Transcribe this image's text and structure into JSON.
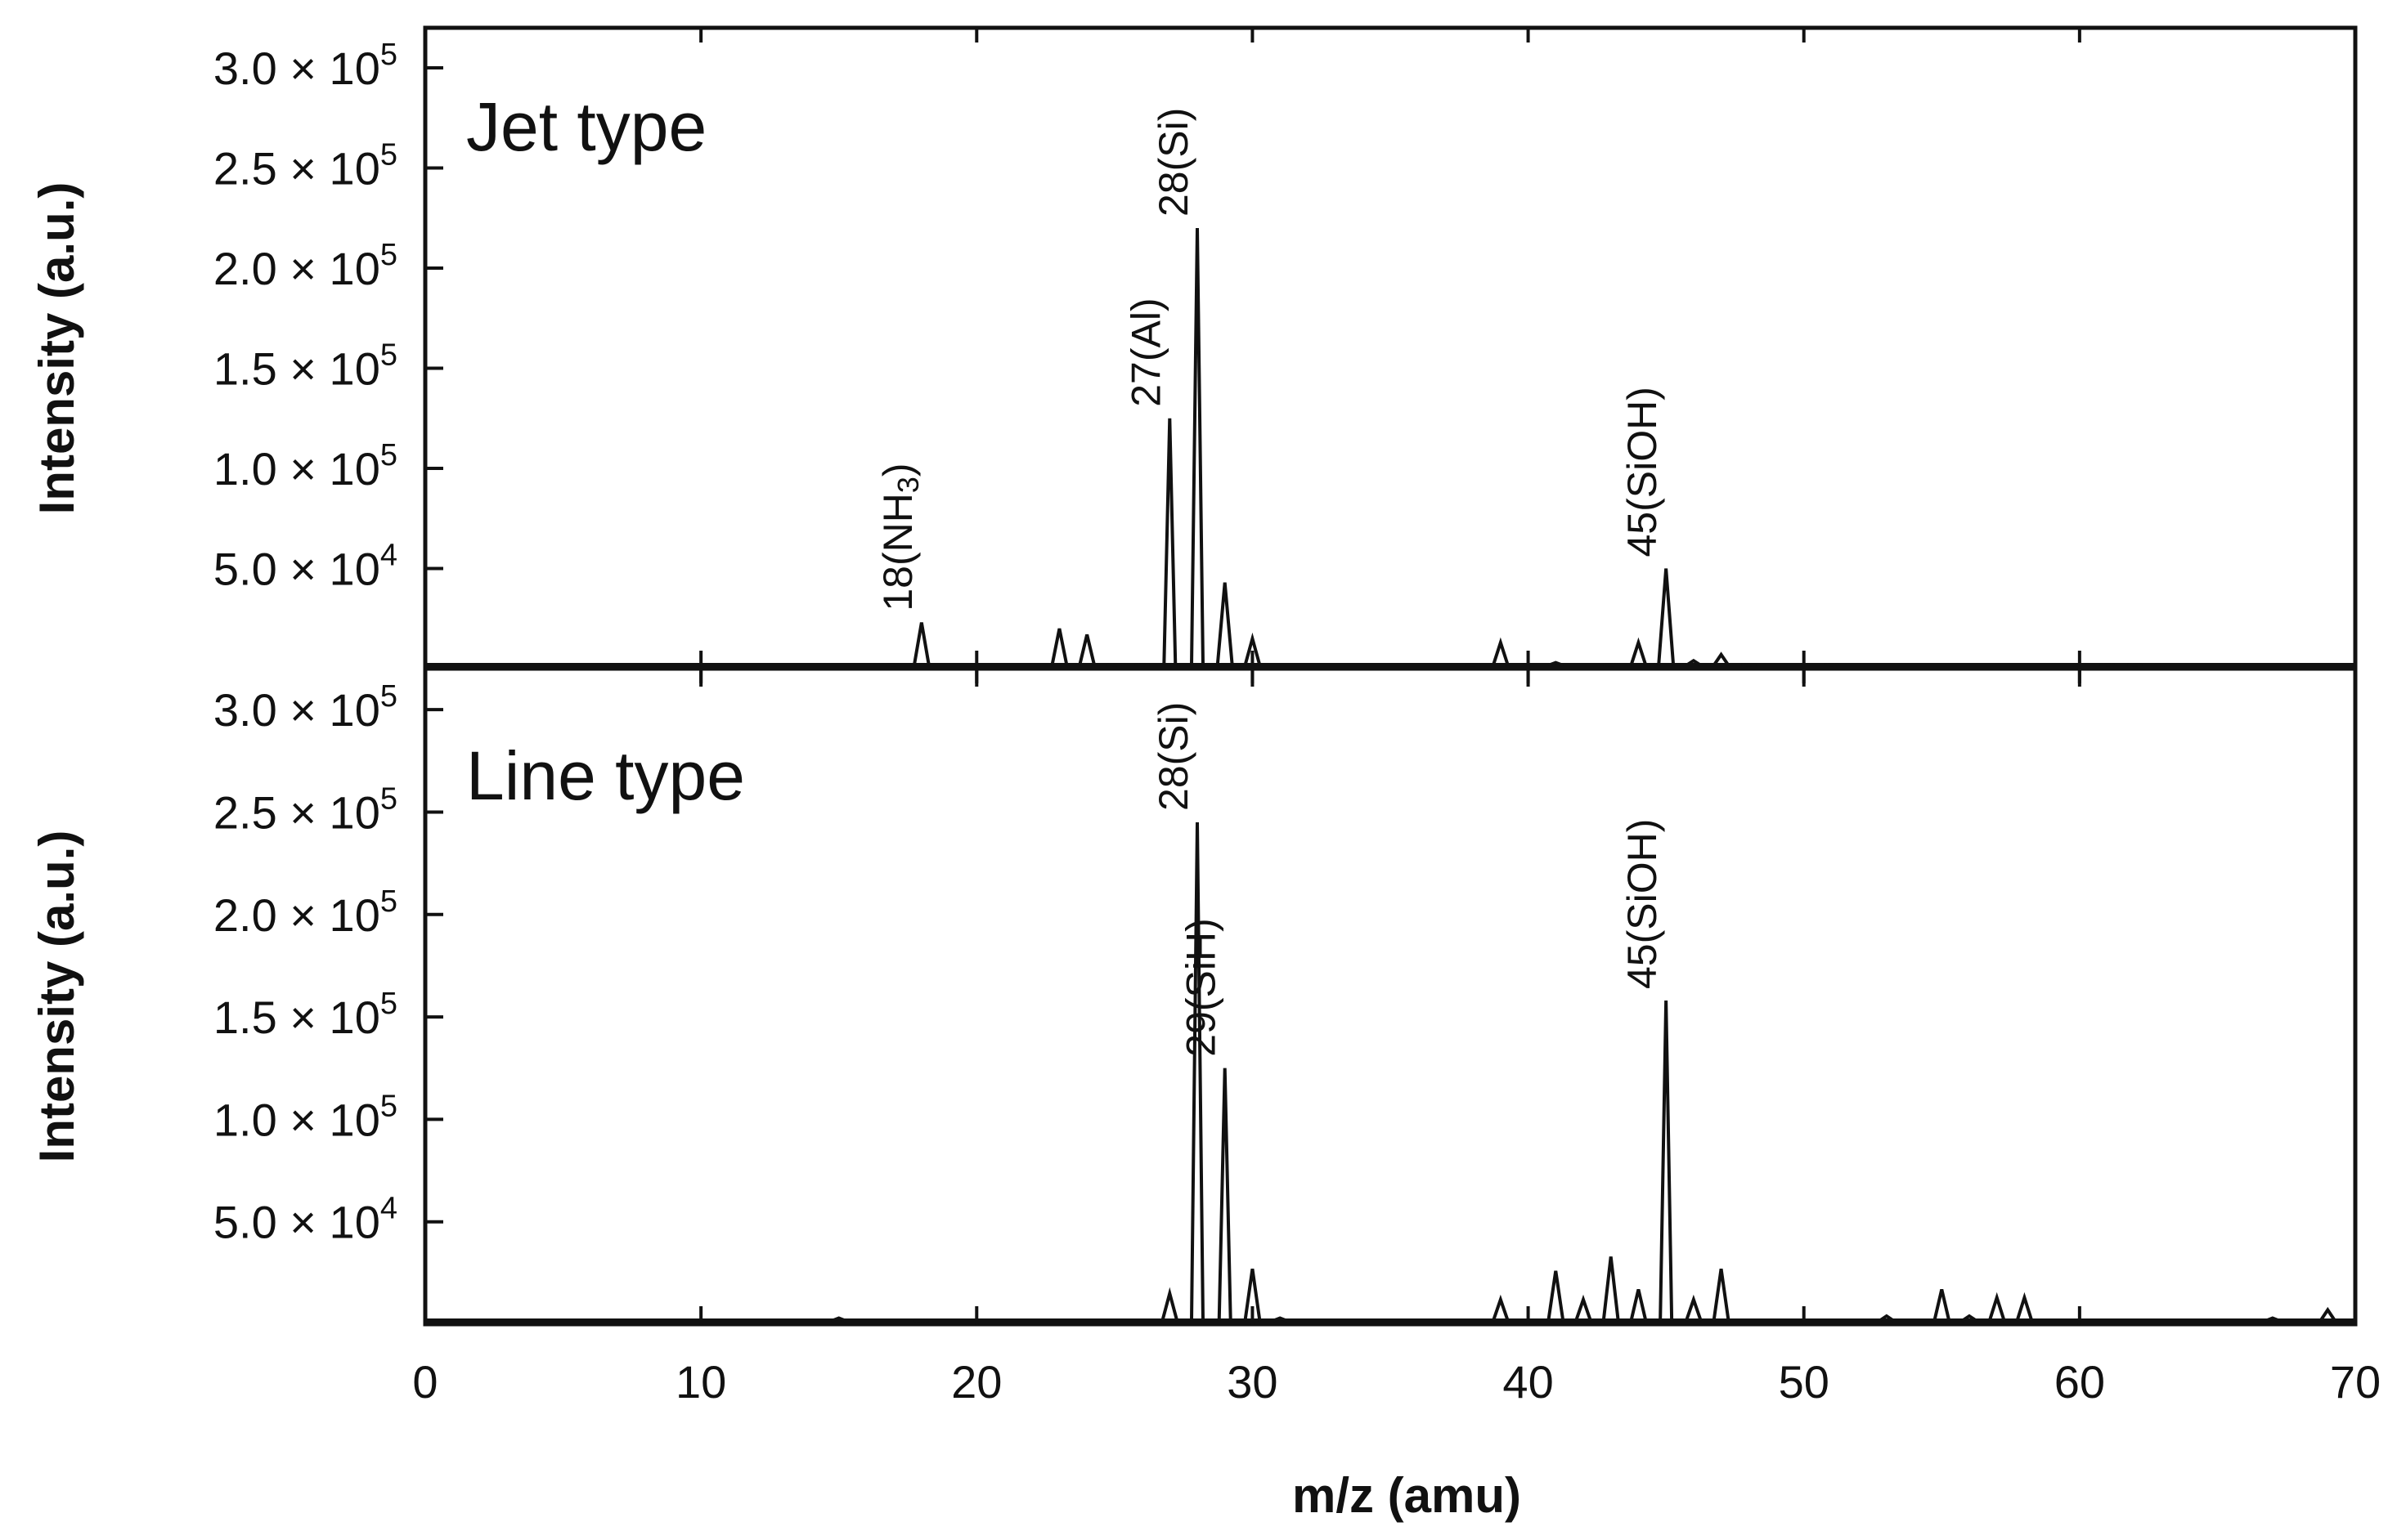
{
  "chart_data": [
    {
      "type": "line",
      "title": "Jet type",
      "xlabel": "m/z (amu)",
      "ylabel": "Intensity (a.u.)",
      "xlim": [
        0,
        70
      ],
      "ylim": [
        0,
        320000
      ],
      "xticks": [
        0,
        10,
        20,
        30,
        40,
        50,
        60,
        70
      ],
      "yticks": [
        {
          "value": 50000,
          "mantissa": "5.0",
          "exponent": "4"
        },
        {
          "value": 100000,
          "mantissa": "1.0",
          "exponent": "5"
        },
        {
          "value": 150000,
          "mantissa": "1.5",
          "exponent": "5"
        },
        {
          "value": 200000,
          "mantissa": "2.0",
          "exponent": "5"
        },
        {
          "value": 250000,
          "mantissa": "2.5",
          "exponent": "5"
        },
        {
          "value": 300000,
          "mantissa": "3.0",
          "exponent": "5"
        }
      ],
      "series": [
        {
          "x": [
            17,
            18,
            23,
            24,
            25,
            26,
            27,
            28,
            29,
            30,
            38,
            39,
            41,
            43,
            44,
            45,
            46,
            47,
            48,
            51,
            61,
            62,
            63
          ],
          "y": [
            2000,
            23000,
            20000,
            17000,
            2000,
            2000,
            125000,
            220000,
            43000,
            15000,
            2000,
            13000,
            3000,
            2000,
            13000,
            50000,
            4000,
            7000,
            2000,
            2000,
            2000,
            2000,
            2000
          ]
        }
      ],
      "annotations": [
        {
          "x": 18,
          "y": 23000,
          "label": "18(NH",
          "subscript": "3",
          "suffix": ")"
        },
        {
          "x": 27,
          "y": 125000,
          "label": "27(Al)"
        },
        {
          "x": 28,
          "y": 220000,
          "label": "28(Si)"
        },
        {
          "x": 45,
          "y": 50000,
          "label": "45(SiOH)"
        }
      ]
    },
    {
      "type": "line",
      "title": "Line type",
      "xlabel": "m/z (amu)",
      "ylabel": "Intensity (a.u.)",
      "xlim": [
        0,
        70
      ],
      "ylim": [
        0,
        320000
      ],
      "xticks": [
        0,
        10,
        20,
        30,
        40,
        50,
        60,
        70
      ],
      "yticks": [
        {
          "value": 50000,
          "mantissa": "5.0",
          "exponent": "4"
        },
        {
          "value": 100000,
          "mantissa": "1.0",
          "exponent": "5"
        },
        {
          "value": 150000,
          "mantissa": "1.5",
          "exponent": "5"
        },
        {
          "value": 200000,
          "mantissa": "2.0",
          "exponent": "5"
        },
        {
          "value": 250000,
          "mantissa": "2.5",
          "exponent": "5"
        },
        {
          "value": 300000,
          "mantissa": "3.0",
          "exponent": "5"
        }
      ],
      "series": [
        {
          "x": [
            15,
            18,
            27,
            28,
            29,
            30,
            31,
            39,
            41,
            42,
            43,
            44,
            45,
            46,
            47,
            53,
            55,
            56,
            57,
            58,
            67,
            69
          ],
          "y": [
            3000,
            2000,
            15000,
            245000,
            125000,
            27000,
            3000,
            12000,
            26000,
            12000,
            33000,
            17000,
            158000,
            12000,
            27000,
            4000,
            17000,
            4000,
            13000,
            13000,
            3000,
            7000
          ]
        }
      ],
      "annotations": [
        {
          "x": 28,
          "y": 245000,
          "label": "28(Si)"
        },
        {
          "x": 29,
          "y": 125000,
          "label": "29(SiH)"
        },
        {
          "x": 45,
          "y": 158000,
          "label": "45(SiOH)"
        }
      ]
    }
  ]
}
